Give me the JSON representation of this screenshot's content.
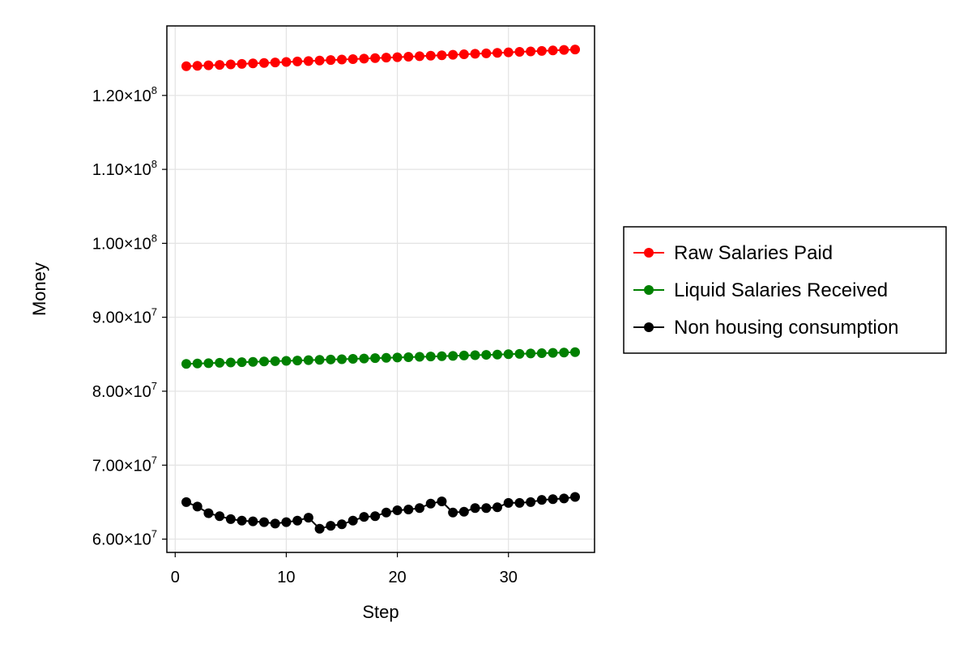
{
  "chart_data": {
    "type": "line",
    "xlabel": "Step",
    "ylabel": "Money",
    "xlim": [
      -0.75,
      37.75
    ],
    "ylim": [
      58200000,
      129400000
    ],
    "x_ticks": [
      0,
      10,
      20,
      30
    ],
    "y_ticks": [
      {
        "value": 60000000,
        "mantissa": "6.00×10",
        "exp": "7"
      },
      {
        "value": 70000000,
        "mantissa": "7.00×10",
        "exp": "7"
      },
      {
        "value": 80000000,
        "mantissa": "8.00×10",
        "exp": "7"
      },
      {
        "value": 90000000,
        "mantissa": "9.00×10",
        "exp": "7"
      },
      {
        "value": 100000000,
        "mantissa": "1.00×10",
        "exp": "8"
      },
      {
        "value": 110000000,
        "mantissa": "1.10×10",
        "exp": "8"
      },
      {
        "value": 120000000,
        "mantissa": "1.20×10",
        "exp": "8"
      }
    ],
    "grid": true,
    "legend_position": "right",
    "x": [
      1,
      2,
      3,
      4,
      5,
      6,
      7,
      8,
      9,
      10,
      11,
      12,
      13,
      14,
      15,
      16,
      17,
      18,
      19,
      20,
      21,
      22,
      23,
      24,
      25,
      26,
      27,
      28,
      29,
      30,
      31,
      32,
      33,
      34,
      35,
      36
    ],
    "series": [
      {
        "name": "Raw Salaries Paid",
        "color": "#ff0000",
        "values": [
          123950000,
          124000000,
          124070000,
          124130000,
          124200000,
          124260000,
          124330000,
          124390000,
          124460000,
          124520000,
          124590000,
          124650000,
          124720000,
          124780000,
          124850000,
          124910000,
          124980000,
          125040000,
          125110000,
          125170000,
          125240000,
          125300000,
          125370000,
          125430000,
          125500000,
          125560000,
          125630000,
          125690000,
          125760000,
          125820000,
          125890000,
          125950000,
          126020000,
          126080000,
          126150000,
          126210000
        ]
      },
      {
        "name": "Liquid Salaries Received",
        "color": "#008000",
        "values": [
          83700000,
          83750000,
          83790000,
          83840000,
          83880000,
          83930000,
          83970000,
          84020000,
          84060000,
          84110000,
          84150000,
          84200000,
          84240000,
          84290000,
          84330000,
          84380000,
          84420000,
          84470000,
          84510000,
          84560000,
          84600000,
          84650000,
          84690000,
          84740000,
          84780000,
          84830000,
          84870000,
          84920000,
          84960000,
          85010000,
          85050000,
          85100000,
          85140000,
          85190000,
          85230000,
          85280000
        ]
      },
      {
        "name": "Non housing consumption",
        "color": "#000000",
        "values": [
          65000000,
          64400000,
          63500000,
          63100000,
          62700000,
          62500000,
          62400000,
          62300000,
          62100000,
          62300000,
          62500000,
          62900000,
          61400000,
          61800000,
          62000000,
          62500000,
          63000000,
          63100000,
          63600000,
          63900000,
          64000000,
          64200000,
          64800000,
          65100000,
          63600000,
          63700000,
          64200000,
          64200000,
          64300000,
          64900000,
          64900000,
          65000000,
          65300000,
          65400000,
          65500000,
          65700000
        ]
      }
    ]
  }
}
